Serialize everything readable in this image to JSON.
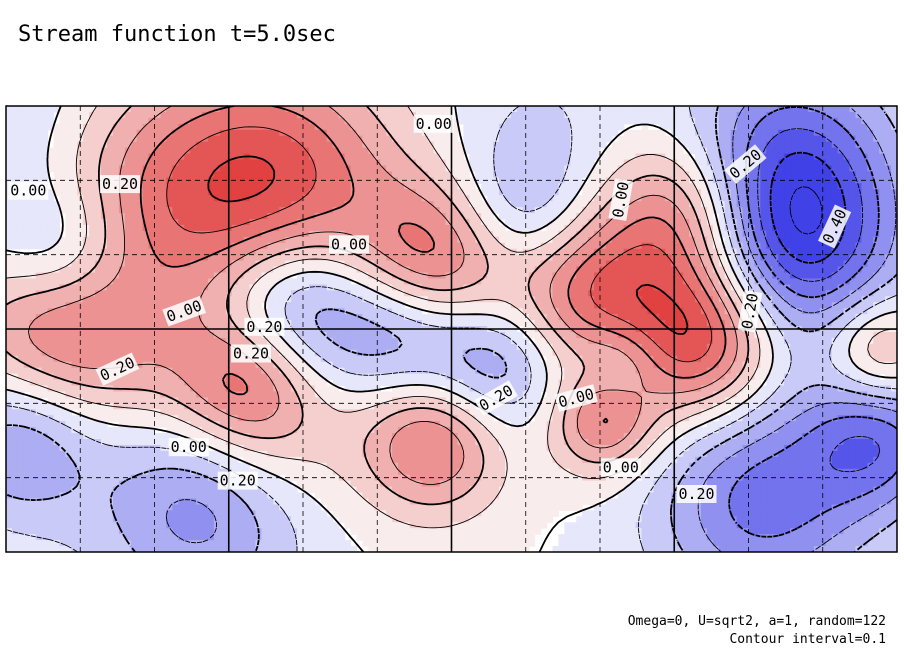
{
  "title": "Stream function t=5.0sec",
  "notes": {
    "params": "Omega=0, U=sqrt2, a=1, random=122",
    "interval": "Contour interval=0.1"
  },
  "chart_data": {
    "type": "contour",
    "title": "Stream function t=5.0sec",
    "contour_interval": 0.1,
    "colors": {
      "positive": "#e03030",
      "negative": "#3030e0",
      "line": "#000000"
    },
    "grid": true,
    "centers": [
      {
        "x": 0.02,
        "y": 0.75,
        "amp": -0.35,
        "r": 0.045
      },
      {
        "x": 0.22,
        "y": 0.88,
        "amp": -0.4,
        "r": 0.06
      },
      {
        "x": 0.05,
        "y": 0.5,
        "amp": 0.35,
        "r": 0.05
      },
      {
        "x": 0.15,
        "y": 0.55,
        "amp": 0.2,
        "r": 0.07
      },
      {
        "x": 0.27,
        "y": 0.62,
        "amp": 0.45,
        "r": 0.04
      },
      {
        "x": 0.31,
        "y": 0.75,
        "amp": 0.18,
        "r": 0.05
      },
      {
        "x": 0.48,
        "y": 0.75,
        "amp": 0.45,
        "r": 0.04
      },
      {
        "x": 0.67,
        "y": 0.71,
        "amp": 0.4,
        "r": 0.03
      },
      {
        "x": 0.32,
        "y": 0.45,
        "amp": -0.55,
        "r": 0.05
      },
      {
        "x": 0.45,
        "y": 0.5,
        "amp": -0.35,
        "r": 0.04
      },
      {
        "x": 0.55,
        "y": 0.58,
        "amp": -0.35,
        "r": 0.04
      },
      {
        "x": 0.69,
        "y": 0.58,
        "amp": -0.2,
        "r": 0.025
      },
      {
        "x": 0.78,
        "y": 0.52,
        "amp": 0.65,
        "r": 0.045
      },
      {
        "x": 0.65,
        "y": 0.42,
        "amp": 0.45,
        "r": 0.045
      },
      {
        "x": 0.48,
        "y": 0.36,
        "amp": 0.5,
        "r": 0.045
      },
      {
        "x": 0.06,
        "y": 0.33,
        "amp": -0.3,
        "r": 0.04
      },
      {
        "x": 0.29,
        "y": 0.2,
        "amp": 0.65,
        "r": 0.07
      },
      {
        "x": 0.12,
        "y": 0.16,
        "amp": 0.2,
        "r": 0.06
      },
      {
        "x": 0.58,
        "y": 0.25,
        "amp": -0.25,
        "r": 0.04
      },
      {
        "x": 0.76,
        "y": 0.25,
        "amp": 0.5,
        "r": 0.045
      },
      {
        "x": 0.88,
        "y": 0.31,
        "amp": -0.6,
        "r": 0.06
      },
      {
        "x": 0.88,
        "y": 0.1,
        "amp": -0.35,
        "r": 0.06
      },
      {
        "x": 0.98,
        "y": 0.55,
        "amp": 0.35,
        "r": 0.03
      },
      {
        "x": 0.98,
        "y": 0.75,
        "amp": -0.4,
        "r": 0.04
      },
      {
        "x": 0.85,
        "y": 0.88,
        "amp": -0.45,
        "r": 0.06
      },
      {
        "x": 0.02,
        "y": 0.05,
        "amp": -0.15,
        "r": 0.06
      },
      {
        "x": 0.6,
        "y": 0.05,
        "amp": -0.1,
        "r": 0.05
      }
    ],
    "contour_labels": [
      {
        "text": "0.20",
        "x": 0.26,
        "y": 0.84
      },
      {
        "text": "0.00",
        "x": 0.205,
        "y": 0.765
      },
      {
        "text": "0.20",
        "x": 0.125,
        "y": 0.59
      },
      {
        "text": "0.20",
        "x": 0.275,
        "y": 0.555
      },
      {
        "text": "0.00",
        "x": 0.2,
        "y": 0.46
      },
      {
        "text": "0.20",
        "x": 0.29,
        "y": 0.495
      },
      {
        "text": "0.20",
        "x": 0.55,
        "y": 0.655
      },
      {
        "text": "0.00",
        "x": 0.64,
        "y": 0.655
      },
      {
        "text": "0.00",
        "x": 0.69,
        "y": 0.81
      },
      {
        "text": "0.20",
        "x": 0.775,
        "y": 0.87
      },
      {
        "text": "0.20",
        "x": 0.835,
        "y": 0.46
      },
      {
        "text": "0.00",
        "x": 0.385,
        "y": 0.31
      },
      {
        "text": "0.00",
        "x": 0.025,
        "y": 0.19
      },
      {
        "text": "0.20",
        "x": 0.128,
        "y": 0.175
      },
      {
        "text": "0.00",
        "x": 0.48,
        "y": 0.04
      },
      {
        "text": "0.00",
        "x": 0.69,
        "y": 0.21
      },
      {
        "text": "0.40",
        "x": 0.93,
        "y": 0.27
      },
      {
        "text": "0.20",
        "x": 0.83,
        "y": 0.13
      }
    ],
    "label_rotation": [
      0,
      0,
      -25,
      0,
      -20,
      0,
      -30,
      -15,
      0,
      0,
      -80,
      0,
      0,
      0,
      0,
      -80,
      -65,
      -40
    ]
  }
}
